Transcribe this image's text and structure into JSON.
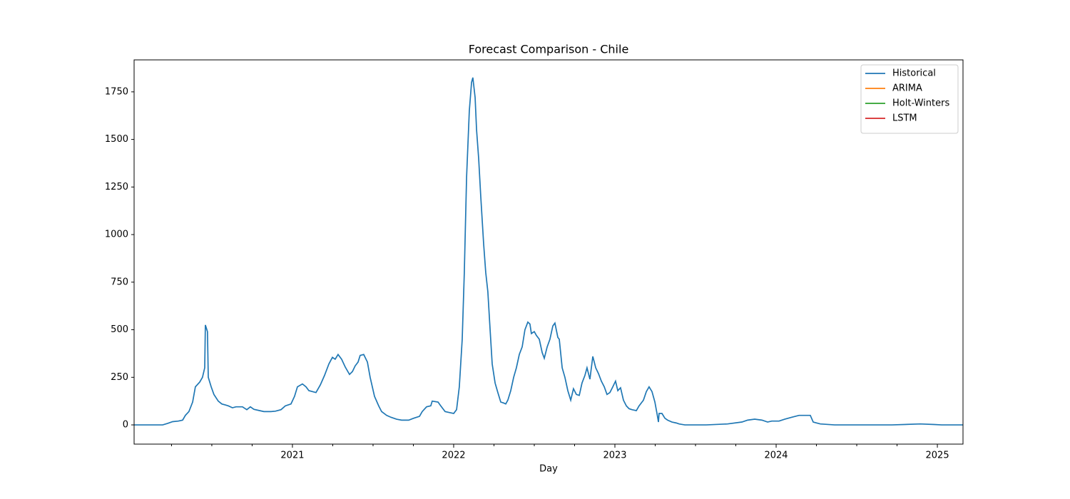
{
  "chart_data": {
    "type": "line",
    "title": "Forecast Comparison - Chile",
    "xlabel": "Day",
    "legend": "upper right",
    "xlim": [
      2020.018,
      2025.159
    ],
    "xticks": [
      2021,
      2022,
      2023,
      2024,
      2025
    ],
    "xminorticks": [
      2020.25,
      2020.5,
      2020.75,
      2021.25,
      2021.5,
      2021.75,
      2022.25,
      2022.5,
      2022.75,
      2023.25,
      2023.5,
      2023.75,
      2024.25,
      2024.5,
      2024.75
    ],
    "ylim": [
      -101,
      1918
    ],
    "yticks": [
      0,
      250,
      500,
      750,
      1000,
      1250,
      1500,
      1750
    ],
    "x": [
      2020.018,
      2020.195,
      2020.226,
      2020.257,
      2020.292,
      2020.319,
      2020.336,
      2020.358,
      2020.381,
      2020.398,
      2020.425,
      2020.442,
      2020.456,
      2020.46,
      2020.473,
      2020.478,
      2020.496,
      2020.513,
      2020.54,
      2020.562,
      2020.584,
      2020.602,
      2020.628,
      2020.65,
      2020.69,
      2020.717,
      2020.739,
      2020.761,
      2020.796,
      2020.823,
      2020.867,
      2020.894,
      2020.929,
      2020.956,
      2020.991,
      2021.013,
      2021.031,
      2021.062,
      2021.084,
      2021.102,
      2021.146,
      2021.173,
      2021.199,
      2021.226,
      2021.248,
      2021.265,
      2021.283,
      2021.305,
      2021.327,
      2021.354,
      2021.372,
      2021.389,
      2021.407,
      2021.42,
      2021.442,
      2021.465,
      2021.482,
      2021.509,
      2021.535,
      2021.553,
      2021.584,
      2021.611,
      2021.646,
      2021.677,
      2021.721,
      2021.752,
      2021.788,
      2021.805,
      2021.832,
      2021.858,
      2021.867,
      2021.903,
      2021.92,
      2021.947,
      2021.973,
      2022.0,
      2022.018,
      2022.035,
      2022.053,
      2022.066,
      2022.08,
      2022.097,
      2022.111,
      2022.119,
      2022.133,
      2022.142,
      2022.155,
      2022.168,
      2022.186,
      2022.199,
      2022.212,
      2022.226,
      2022.239,
      2022.257,
      2022.274,
      2022.292,
      2022.31,
      2022.323,
      2022.336,
      2022.354,
      2022.372,
      2022.389,
      2022.407,
      2022.425,
      2022.442,
      2022.46,
      2022.473,
      2022.482,
      2022.5,
      2022.513,
      2022.531,
      2022.549,
      2022.562,
      2022.58,
      2022.597,
      2022.615,
      2022.628,
      2022.646,
      2022.655,
      2022.673,
      2022.69,
      2022.708,
      2022.726,
      2022.743,
      2022.761,
      2022.779,
      2022.796,
      2022.814,
      2022.827,
      2022.845,
      2022.863,
      2022.881,
      2022.898,
      2022.916,
      2022.934,
      2022.951,
      2022.969,
      2022.987,
      2023.004,
      2023.018,
      2023.035,
      2023.053,
      2023.071,
      2023.088,
      2023.106,
      2023.133,
      2023.15,
      2023.177,
      2023.195,
      2023.212,
      2023.23,
      2023.248,
      2023.261,
      2023.27,
      2023.274,
      2023.292,
      2023.31,
      2023.327,
      2023.354,
      2023.381,
      2023.398,
      2023.434,
      2023.566,
      2023.699,
      2023.788,
      2023.823,
      2023.867,
      2023.912,
      2023.947,
      2023.973,
      2024.018,
      2024.053,
      2024.097,
      2024.142,
      2024.212,
      2024.23,
      2024.274,
      2024.363,
      2024.717,
      2024.894,
      2024.982,
      2025.027,
      2025.159
    ],
    "series": [
      {
        "name": "Historical",
        "color": "#1f77b4",
        "values": [
          0,
          0,
          8,
          17,
          20,
          25,
          50,
          70,
          120,
          200,
          225,
          250,
          300,
          525,
          490,
          250,
          200,
          160,
          125,
          110,
          105,
          100,
          90,
          95,
          95,
          80,
          95,
          82,
          75,
          70,
          70,
          72,
          80,
          100,
          110,
          150,
          200,
          215,
          200,
          180,
          170,
          210,
          260,
          320,
          355,
          345,
          370,
          345,
          305,
          265,
          280,
          310,
          330,
          365,
          370,
          330,
          250,
          150,
          100,
          70,
          50,
          40,
          30,
          25,
          25,
          35,
          45,
          70,
          95,
          100,
          125,
          120,
          100,
          70,
          65,
          60,
          80,
          200,
          450,
          800,
          1300,
          1650,
          1800,
          1825,
          1720,
          1550,
          1400,
          1200,
          950,
          800,
          700,
          500,
          320,
          220,
          170,
          120,
          115,
          110,
          130,
          180,
          250,
          300,
          370,
          410,
          500,
          540,
          530,
          480,
          490,
          470,
          450,
          380,
          350,
          410,
          450,
          520,
          535,
          460,
          450,
          300,
          250,
          180,
          130,
          190,
          160,
          155,
          220,
          260,
          300,
          240,
          360,
          300,
          270,
          230,
          200,
          160,
          170,
          200,
          230,
          180,
          195,
          130,
          100,
          85,
          80,
          75,
          100,
          130,
          175,
          200,
          175,
          120,
          60,
          15,
          60,
          60,
          35,
          25,
          15,
          10,
          5,
          0,
          0,
          5,
          15,
          25,
          30,
          25,
          15,
          20,
          20,
          30,
          40,
          50,
          50,
          15,
          5,
          0,
          0,
          5,
          2,
          0,
          0
        ]
      },
      {
        "name": "ARIMA",
        "color": "#ff7f0e"
      },
      {
        "name": "Holt-Winters",
        "color": "#2ca02c"
      },
      {
        "name": "LSTM",
        "color": "#d62728"
      }
    ]
  }
}
